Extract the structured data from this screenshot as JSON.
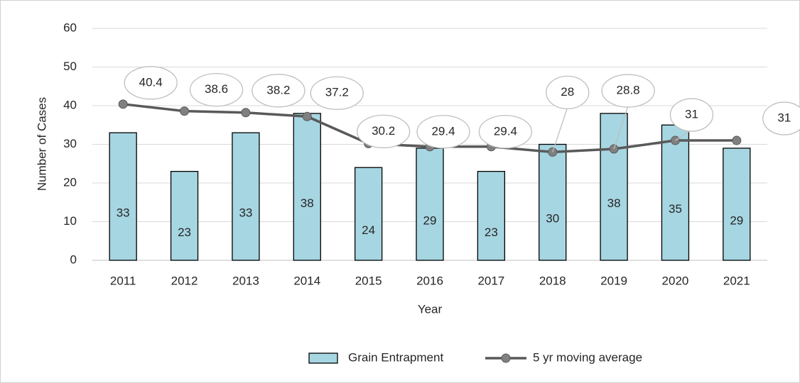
{
  "chart_data": {
    "type": "bar",
    "x_label": "Year",
    "y_label": "Number of Cases",
    "categories": [
      "2011",
      "2012",
      "2013",
      "2014",
      "2015",
      "2016",
      "2017",
      "2018",
      "2019",
      "2020",
      "2021"
    ],
    "series": [
      {
        "name": "Grain Entrapment",
        "type": "bar",
        "color": "#a6d6e2",
        "values": [
          33,
          23,
          33,
          38,
          24,
          29,
          23,
          30,
          38,
          35,
          29
        ]
      },
      {
        "name": "5 yr moving average",
        "type": "line",
        "color": "#595959",
        "marker_color": "#808080",
        "values": [
          40.4,
          38.6,
          38.2,
          37.2,
          30.2,
          29.4,
          29.4,
          28,
          28.8,
          31,
          31
        ]
      }
    ],
    "ylim": [
      0,
      60
    ],
    "yticks": [
      0,
      10,
      20,
      30,
      40,
      50,
      60
    ],
    "grid": true,
    "legend": "bottom"
  }
}
